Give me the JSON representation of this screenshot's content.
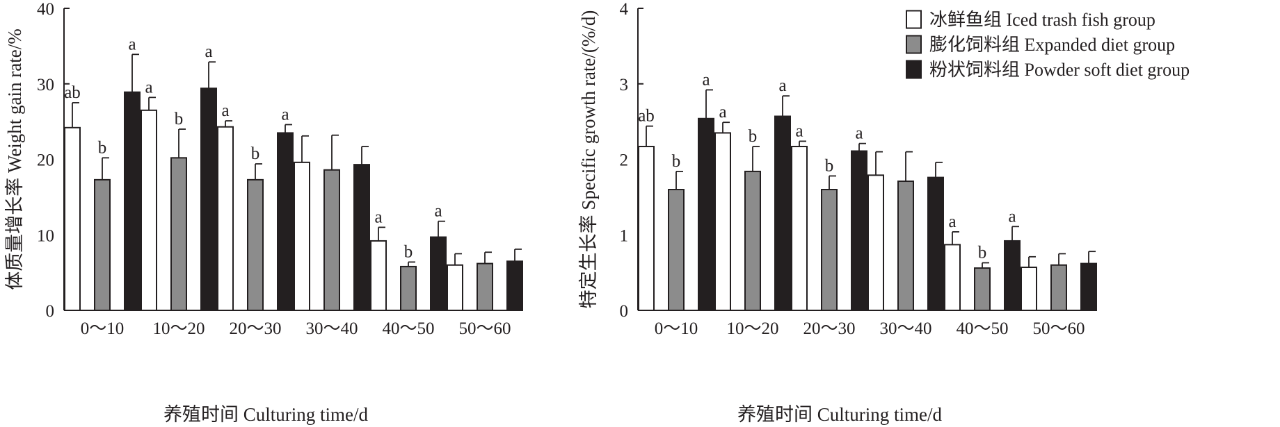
{
  "chart_data": [
    {
      "type": "bar",
      "ylabel": "体质量增长率 Weight gain rate/%",
      "xlabel": "养殖时间 Culturing time/d",
      "ylim": [
        0,
        40
      ],
      "yticks": [
        0,
        10,
        20,
        30,
        40
      ],
      "categories": [
        "0～10",
        "10～20",
        "20～30",
        "30～40",
        "40～50",
        "50～60"
      ],
      "series": [
        {
          "name": "冰鲜鱼组 Iced trash fish group",
          "color": "#ffffff",
          "values": [
            24.2,
            26.5,
            24.3,
            19.6,
            9.2,
            6.0
          ],
          "errors": [
            3.3,
            1.7,
            0.8,
            3.5,
            1.8,
            1.5
          ],
          "labels": [
            "ab",
            "a",
            "a",
            "",
            "a",
            ""
          ]
        },
        {
          "name": "膨化饲料组 Expanded diet group",
          "color": "#8c8c8c",
          "values": [
            17.3,
            20.2,
            17.3,
            18.6,
            5.8,
            6.2
          ],
          "errors": [
            2.9,
            3.8,
            2.1,
            4.6,
            0.6,
            1.5
          ],
          "labels": [
            "b",
            "b",
            "b",
            "",
            "b",
            ""
          ]
        },
        {
          "name": "粉状饲料组 Powder soft diet group",
          "color": "#231f20",
          "values": [
            28.9,
            29.4,
            23.5,
            19.3,
            9.7,
            6.5
          ],
          "errors": [
            5.0,
            3.5,
            1.1,
            2.4,
            2.1,
            1.6
          ],
          "labels": [
            "a",
            "a",
            "a",
            "",
            "a",
            ""
          ]
        }
      ]
    },
    {
      "type": "bar",
      "ylabel": "特定生长率 Specific growth rate/(%/d)",
      "xlabel": "养殖时间 Culturing time/d",
      "ylim": [
        0,
        4
      ],
      "yticks": [
        0,
        1,
        2,
        3,
        4
      ],
      "categories": [
        "0～10",
        "10～20",
        "20～30",
        "30～40",
        "40～50",
        "50～60"
      ],
      "series": [
        {
          "name": "冰鲜鱼组 Iced trash fish group",
          "color": "#ffffff",
          "values": [
            2.17,
            2.35,
            2.17,
            1.79,
            0.87,
            0.57
          ],
          "errors": [
            0.27,
            0.14,
            0.07,
            0.31,
            0.17,
            0.14
          ],
          "labels": [
            "ab",
            "a",
            "a",
            "",
            "a",
            ""
          ]
        },
        {
          "name": "膨化饲料组 Expanded diet group",
          "color": "#8c8c8c",
          "values": [
            1.6,
            1.84,
            1.6,
            1.71,
            0.56,
            0.6
          ],
          "errors": [
            0.24,
            0.33,
            0.18,
            0.39,
            0.07,
            0.15
          ],
          "labels": [
            "b",
            "b",
            "b",
            "",
            "b",
            ""
          ]
        },
        {
          "name": "粉状饲料组 Powder soft diet group",
          "color": "#231f20",
          "values": [
            2.54,
            2.57,
            2.11,
            1.76,
            0.92,
            0.62
          ],
          "errors": [
            0.38,
            0.27,
            0.1,
            0.2,
            0.19,
            0.16
          ],
          "labels": [
            "a",
            "a",
            "a",
            "",
            "a",
            ""
          ]
        }
      ]
    }
  ],
  "legend": [
    {
      "label": "冰鲜鱼组 Iced trash fish group",
      "color": "#ffffff"
    },
    {
      "label": "膨化饲料组 Expanded diet group",
      "color": "#8c8c8c"
    },
    {
      "label": "粉状饲料组 Powder soft diet group",
      "color": "#231f20"
    }
  ]
}
